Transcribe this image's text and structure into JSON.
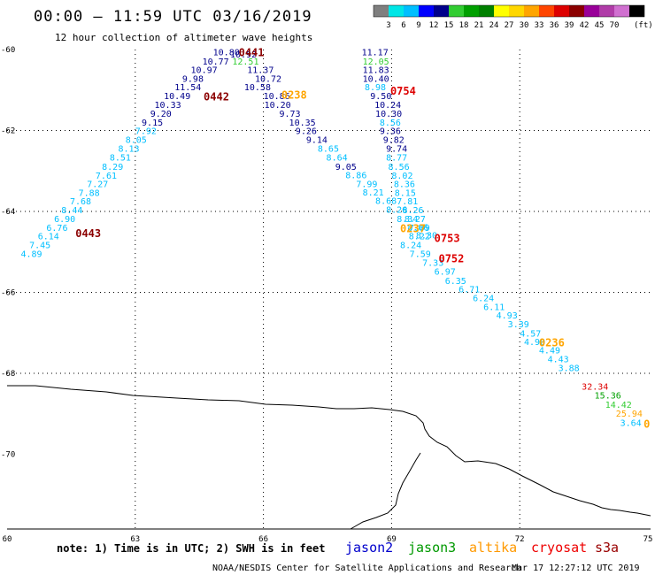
{
  "header": {
    "title": "00:00 – 11:59 UTC 03/16/2019",
    "subtitle": "12 hour collection of altimeter wave heights"
  },
  "colorbar": {
    "unit": "(ft)",
    "colors": [
      "#7f7f7f",
      "#00e6e6",
      "#00bfff",
      "#0000ff",
      "#00008b",
      "#32cd32",
      "#00a000",
      "#008000",
      "#ffff00",
      "#ffd700",
      "#ffa500",
      "#ff4500",
      "#dd0000",
      "#8b0000",
      "#990099",
      "#b03ca8",
      "#d070d0",
      "#000000"
    ],
    "labels": [
      "3",
      "6",
      "9",
      "12",
      "15",
      "18",
      "21",
      "24",
      "27",
      "30",
      "33",
      "36",
      "39",
      "42",
      "45",
      "70"
    ]
  },
  "axes": {
    "x_labels": [
      "60",
      "63",
      "66",
      "69",
      "72",
      "75"
    ],
    "y_labels": [
      "-60",
      "-62",
      "-64",
      "-66",
      "-68",
      "-70"
    ]
  },
  "tracks": [
    {
      "id": "jason2",
      "color": "#0000cc",
      "pass_labels": [],
      "values": [
        {
          "v": "10.80",
          "c": "#00008b",
          "lon": 64.82,
          "lat": -60.06
        },
        {
          "v": "10.77",
          "c": "#00008b",
          "lon": 64.57,
          "lat": -60.28
        },
        {
          "v": "10.97",
          "c": "#00008b",
          "lon": 64.3,
          "lat": -60.49
        },
        {
          "v": "9.98",
          "c": "#00008b",
          "lon": 64.1,
          "lat": -60.71
        },
        {
          "v": "11.54",
          "c": "#00008b",
          "lon": 63.92,
          "lat": -60.92
        },
        {
          "v": "10.49",
          "c": "#00008b",
          "lon": 63.67,
          "lat": -61.14
        },
        {
          "v": "10.33",
          "c": "#00008b",
          "lon": 63.45,
          "lat": -61.36
        },
        {
          "v": "9.20",
          "c": "#00008b",
          "lon": 63.35,
          "lat": -61.57
        },
        {
          "v": "9.15",
          "c": "#00008b",
          "lon": 63.15,
          "lat": -61.79
        },
        {
          "v": "10.92",
          "c": "#00008b",
          "lon": 65.22,
          "lat": -60.11
        },
        {
          "v": "11.37",
          "c": "#00008b",
          "lon": 65.62,
          "lat": -60.49
        },
        {
          "v": "10.72",
          "c": "#00008b",
          "lon": 65.8,
          "lat": -60.71
        },
        {
          "v": "10.58",
          "c": "#00008b",
          "lon": 65.55,
          "lat": -60.92
        },
        {
          "v": "10.86",
          "c": "#00008b",
          "lon": 66.0,
          "lat": -61.14
        },
        {
          "v": "10.20",
          "c": "#00008b",
          "lon": 66.02,
          "lat": -61.36
        },
        {
          "v": "9.73",
          "c": "#00008b",
          "lon": 66.37,
          "lat": -61.57
        },
        {
          "v": "10.35",
          "c": "#00008b",
          "lon": 66.6,
          "lat": -61.79
        },
        {
          "v": "9.26",
          "c": "#00008b",
          "lon": 66.75,
          "lat": -62.0
        },
        {
          "v": "9.14",
          "c": "#00008b",
          "lon": 67.0,
          "lat": -62.22
        },
        {
          "v": "8.65",
          "c": "#00bfff",
          "lon": 67.27,
          "lat": -62.44
        },
        {
          "v": "8.64",
          "c": "#00bfff",
          "lon": 67.47,
          "lat": -62.66
        },
        {
          "v": "9.05",
          "c": "#00008b",
          "lon": 67.68,
          "lat": -62.88
        },
        {
          "v": "8.86",
          "c": "#00bfff",
          "lon": 67.92,
          "lat": -63.09
        },
        {
          "v": "7.99",
          "c": "#00bfff",
          "lon": 68.17,
          "lat": -63.31
        },
        {
          "v": "8.21",
          "c": "#00bfff",
          "lon": 68.32,
          "lat": -63.52
        },
        {
          "v": "8.68",
          "c": "#00bfff",
          "lon": 68.62,
          "lat": -63.73
        },
        {
          "v": "8.26",
          "c": "#00bfff",
          "lon": 68.87,
          "lat": -63.95
        },
        {
          "v": "8.34",
          "c": "#00bfff",
          "lon": 69.12,
          "lat": -64.17
        },
        {
          "v": "8.06",
          "c": "#00bfff",
          "lon": 69.37,
          "lat": -64.38
        },
        {
          "v": "8.30",
          "c": "#00bfff",
          "lon": 69.57,
          "lat": -64.58
        },
        {
          "v": "7.92",
          "c": "#00bfff",
          "lon": 63.0,
          "lat": -62.0
        },
        {
          "v": "8.05",
          "c": "#00bfff",
          "lon": 62.77,
          "lat": -62.22
        },
        {
          "v": "8.13",
          "c": "#00bfff",
          "lon": 62.6,
          "lat": -62.44
        },
        {
          "v": "8.51",
          "c": "#00bfff",
          "lon": 62.4,
          "lat": -62.66
        },
        {
          "v": "8.29",
          "c": "#00bfff",
          "lon": 62.22,
          "lat": -62.88
        },
        {
          "v": "7.61",
          "c": "#00bfff",
          "lon": 62.07,
          "lat": -63.1
        },
        {
          "v": "7.27",
          "c": "#00bfff",
          "lon": 61.87,
          "lat": -63.31
        },
        {
          "v": "7.88",
          "c": "#00bfff",
          "lon": 61.67,
          "lat": -63.53
        },
        {
          "v": "7.68",
          "c": "#00bfff",
          "lon": 61.47,
          "lat": -63.74
        },
        {
          "v": "8.44",
          "c": "#00bfff",
          "lon": 61.27,
          "lat": -63.96
        },
        {
          "v": "6.90",
          "c": "#00bfff",
          "lon": 61.1,
          "lat": -64.18
        },
        {
          "v": "6.76",
          "c": "#00bfff",
          "lon": 60.92,
          "lat": -64.39
        },
        {
          "v": "6.14",
          "c": "#00bfff",
          "lon": 60.72,
          "lat": -64.6
        },
        {
          "v": "7.45",
          "c": "#00bfff",
          "lon": 60.52,
          "lat": -64.82
        },
        {
          "v": "4.89",
          "c": "#00bfff",
          "lon": 60.32,
          "lat": -65.04
        }
      ]
    },
    {
      "id": "jason3",
      "color": "#009900",
      "pass_labels": [],
      "values": [
        {
          "v": "11.17",
          "c": "#00008b",
          "lon": 68.3,
          "lat": -60.06
        },
        {
          "v": "12.05",
          "c": "#32cd32",
          "lon": 68.32,
          "lat": -60.28
        },
        {
          "v": "11.83",
          "c": "#00008b",
          "lon": 68.32,
          "lat": -60.49
        },
        {
          "v": "10.40",
          "c": "#00008b",
          "lon": 68.32,
          "lat": -60.71
        },
        {
          "v": "8.98",
          "c": "#00bfff",
          "lon": 68.37,
          "lat": -60.92
        },
        {
          "v": "9.50",
          "c": "#00008b",
          "lon": 68.5,
          "lat": -61.14
        },
        {
          "v": "10.24",
          "c": "#00008b",
          "lon": 68.6,
          "lat": -61.36
        },
        {
          "v": "10.30",
          "c": "#00008b",
          "lon": 68.62,
          "lat": -61.57
        },
        {
          "v": "8.56",
          "c": "#00bfff",
          "lon": 68.72,
          "lat": -61.79
        },
        {
          "v": "9.36",
          "c": "#00008b",
          "lon": 68.72,
          "lat": -62.0
        },
        {
          "v": "9.82",
          "c": "#00008b",
          "lon": 68.8,
          "lat": -62.22
        },
        {
          "v": "9.74",
          "c": "#00008b",
          "lon": 68.87,
          "lat": -62.44
        },
        {
          "v": "8.77",
          "c": "#00bfff",
          "lon": 68.87,
          "lat": -62.66
        },
        {
          "v": "8.56",
          "c": "#00bfff",
          "lon": 68.92,
          "lat": -62.88
        },
        {
          "v": "8.02",
          "c": "#00bfff",
          "lon": 69.0,
          "lat": -63.1
        },
        {
          "v": "8.36",
          "c": "#00bfff",
          "lon": 69.05,
          "lat": -63.31
        },
        {
          "v": "8.15",
          "c": "#00bfff",
          "lon": 69.07,
          "lat": -63.53
        },
        {
          "v": "7.81",
          "c": "#00bfff",
          "lon": 69.12,
          "lat": -63.74
        },
        {
          "v": "8.26",
          "c": "#00bfff",
          "lon": 69.25,
          "lat": -63.96
        },
        {
          "v": "8.27",
          "c": "#00bfff",
          "lon": 69.3,
          "lat": -64.18
        },
        {
          "v": "7.09",
          "c": "#00bfff",
          "lon": 69.4,
          "lat": -64.39
        },
        {
          "v": "8.22",
          "c": "#00bfff",
          "lon": 69.4,
          "lat": -64.6
        },
        {
          "v": "8.24",
          "c": "#00bfff",
          "lon": 69.2,
          "lat": -64.82
        },
        {
          "v": "7.59",
          "c": "#00bfff",
          "lon": 69.42,
          "lat": -65.04
        },
        {
          "v": "7.33",
          "c": "#00bfff",
          "lon": 69.72,
          "lat": -65.26
        },
        {
          "v": "6.97",
          "c": "#00bfff",
          "lon": 70.0,
          "lat": -65.47
        },
        {
          "v": "6.35",
          "c": "#00bfff",
          "lon": 70.25,
          "lat": -65.7
        },
        {
          "v": "6.71",
          "c": "#00bfff",
          "lon": 70.57,
          "lat": -65.91
        },
        {
          "v": "6.24",
          "c": "#00bfff",
          "lon": 70.9,
          "lat": -66.13
        },
        {
          "v": "6.11",
          "c": "#00bfff",
          "lon": 71.15,
          "lat": -66.35
        },
        {
          "v": "4.93",
          "c": "#00bfff",
          "lon": 71.45,
          "lat": -66.56
        },
        {
          "v": "3.39",
          "c": "#00bfff",
          "lon": 71.72,
          "lat": -66.78
        },
        {
          "v": "4.57",
          "c": "#00bfff",
          "lon": 72.0,
          "lat": -67.0
        },
        {
          "v": "4.90",
          "c": "#00bfff",
          "lon": 72.1,
          "lat": -67.21
        },
        {
          "v": "4.49",
          "c": "#00bfff",
          "lon": 72.45,
          "lat": -67.42
        },
        {
          "v": "4.43",
          "c": "#00bfff",
          "lon": 72.65,
          "lat": -67.64
        },
        {
          "v": "3.88",
          "c": "#00bfff",
          "lon": 72.9,
          "lat": -67.86
        }
      ]
    },
    {
      "id": "altika",
      "color": "#ff9900",
      "pass_labels": [],
      "values": [
        {
          "v": "12.51",
          "c": "#32cd32",
          "lon": 65.27,
          "lat": -60.28
        }
      ]
    },
    {
      "id": "cryosat",
      "color": "#ff0000",
      "pass_labels": [],
      "values": [
        {
          "v": "32.34",
          "c": "#dd0000",
          "lon": 73.45,
          "lat": -68.32
        },
        {
          "v": "15.36",
          "c": "#00a000",
          "lon": 73.75,
          "lat": -68.54
        },
        {
          "v": "14.42",
          "c": "#32cd32",
          "lon": 74.0,
          "lat": -68.76
        },
        {
          "v": "25.94",
          "c": "#ffa500",
          "lon": 74.25,
          "lat": -68.98
        },
        {
          "v": "3.64",
          "c": "#00bfff",
          "lon": 74.35,
          "lat": -69.21
        }
      ]
    }
  ],
  "pass_labels": [
    {
      "label": "0441",
      "c": "#8b0000",
      "lon": 65.42,
      "lat": -60.06
    },
    {
      "label": "0442",
      "c": "#8b0000",
      "lon": 64.6,
      "lat": -61.15
    },
    {
      "label": "0238",
      "c": "#ffa500",
      "lon": 66.42,
      "lat": -61.1
    },
    {
      "label": "0754",
      "c": "#dd0000",
      "lon": 68.97,
      "lat": -61.0
    },
    {
      "label": "0443",
      "c": "#8b0000",
      "lon": 61.6,
      "lat": -64.52
    },
    {
      "label": "0237",
      "c": "#ffa500",
      "lon": 69.2,
      "lat": -64.4
    },
    {
      "label": "0753",
      "c": "#dd0000",
      "lon": 70.0,
      "lat": -64.64
    },
    {
      "label": "0752",
      "c": "#dd0000",
      "lon": 70.1,
      "lat": -65.15
    },
    {
      "label": "0236",
      "c": "#ffa500",
      "lon": 72.45,
      "lat": -67.22
    },
    {
      "label": "0",
      "c": "#ffa500",
      "lon": 74.9,
      "lat": -69.23
    }
  ],
  "footer": {
    "note": "note:  1) Time is in UTC;  2) SWH is in feet",
    "satellites": [
      {
        "name": "jason2",
        "color": "#0000cc"
      },
      {
        "name": "jason3",
        "color": "#009900"
      },
      {
        "name": "altika",
        "color": "#ff9900"
      },
      {
        "name": "cryosat",
        "color": "#ee0000"
      },
      {
        "name": "s3a",
        "color": "#990000"
      }
    ],
    "credit": "NOAA/NESDIS Center for Satellite Applications and Research",
    "timestamp": "Mar 17 12:27:12 UTC 2019"
  }
}
